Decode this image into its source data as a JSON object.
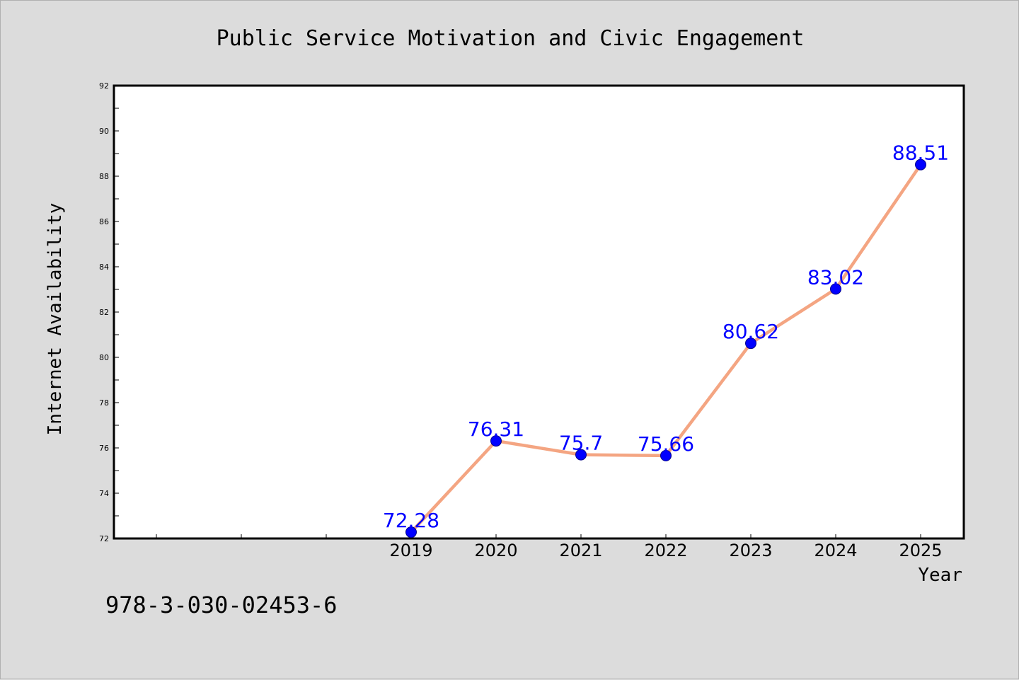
{
  "chart_data": {
    "type": "line",
    "title": "Public Service Motivation and Civic Engagement",
    "xlabel": "Year",
    "ylabel": "Internet Availability",
    "categories": [
      "2019",
      "2020",
      "2021",
      "2022",
      "2023",
      "2024",
      "2025"
    ],
    "values": [
      72.28,
      76.31,
      75.7,
      75.66,
      80.62,
      83.02,
      88.51
    ],
    "data_labels": [
      "72.28",
      "76.31",
      "75.7",
      "75.66",
      "80.62",
      "83.02",
      "88.51"
    ],
    "ylim": [
      72,
      92
    ],
    "yticks": [
      "72",
      "74",
      "76",
      "78",
      "80",
      "82",
      "84",
      "86",
      "88",
      "90",
      "92"
    ],
    "grid": false,
    "legend": "none",
    "line_color": "#f4a582",
    "marker_color": "#0000ff",
    "label_color": "#0000ff"
  },
  "footer": {
    "isbn": "978-3-030-02453-6"
  }
}
